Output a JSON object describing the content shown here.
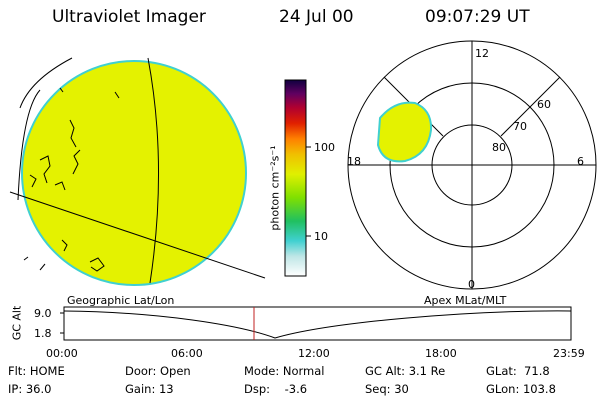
{
  "header": {
    "instrument": "Ultraviolet Imager",
    "date": "24 Jul 00",
    "time": "09:07:29 UT"
  },
  "colorbar": {
    "unit_label": "photon cm⁻²s⁻¹",
    "ticks": [
      "100",
      "10"
    ],
    "stops": [
      "#ffffff",
      "#bfe6e6",
      "#40d0d0",
      "#20c060",
      "#80e000",
      "#e0f000",
      "#f0c000",
      "#ff8000",
      "#e02000",
      "#b00030",
      "#600060",
      "#100040"
    ]
  },
  "geo_panel": {
    "label": "Geographic Lat/Lon",
    "fill_color": "#e4f200",
    "edge_color": "#40d0d0"
  },
  "polar_panel": {
    "label": "Apex MLat/MLT",
    "mlt_labels": {
      "top": "12",
      "bottom": "0",
      "left": "18",
      "right": "6"
    },
    "lat_labels": [
      "60",
      "70",
      "80"
    ]
  },
  "timeline": {
    "ylabel": "GC Alt",
    "yticks": [
      "9.0",
      "1.8"
    ],
    "xticks": [
      "00:00",
      "06:00",
      "12:00",
      "18:00",
      "23:59"
    ]
  },
  "footer": {
    "flt": "Flt: HOME",
    "ip": "IP: 36.0",
    "door": "Door: Open",
    "gain": "Gain: 13",
    "mode": "Mode: Normal",
    "dsp": "Dsp:    -3.6",
    "gcalt": "GC Alt: 3.1 Re",
    "seq": "Seq: 30",
    "glat": "GLat:  71.8",
    "glon": "GLon: 103.8"
  }
}
